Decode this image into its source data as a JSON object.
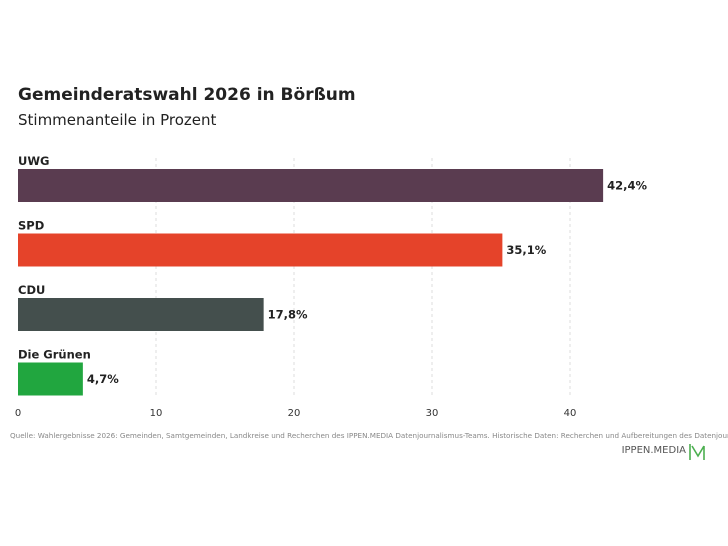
{
  "chart_data": {
    "type": "bar",
    "orientation": "horizontal",
    "title": "Gemeinderatswahl 2026 in Börßum",
    "subtitle": "Stimmenanteile in Prozent",
    "categories": [
      "UWG",
      "SPD",
      "CDU",
      "Die Grünen"
    ],
    "values": [
      42.4,
      35.1,
      17.8,
      4.7
    ],
    "value_labels": [
      "42,4%",
      "35,1%",
      "17,8%",
      "4,7%"
    ],
    "colors": [
      "#5a3c50",
      "#e5432a",
      "#444f4d",
      "#21a63f"
    ],
    "xlim": [
      0,
      45
    ],
    "xticks": [
      0,
      10,
      20,
      30,
      40
    ],
    "grid": true
  },
  "source": "Quelle: Wahlergebnisse 2026: Gemeinden, Samtgemeinden, Landkreise und Recherchen des IPPEN.MEDIA Datenjournalismus-Teams. Historische Daten: Recherchen und Aufbereitungen des Datenjournalismus-Teams",
  "brand": {
    "name": "IPPEN.MEDIA",
    "logo_color": "#4caf50"
  }
}
